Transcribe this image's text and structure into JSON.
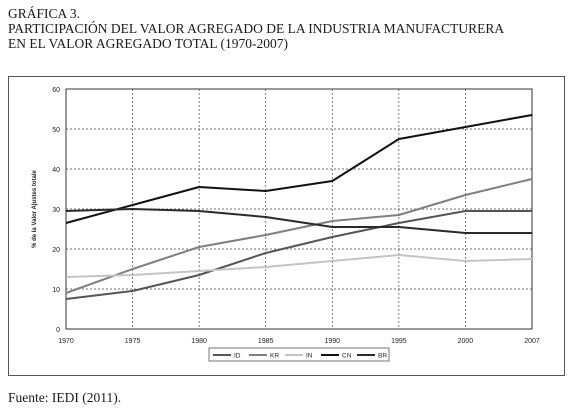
{
  "figure": {
    "label": "GRÁFICA 3.",
    "title_line1": "PARTICIPACIÓN DEL VALOR AGREGADO DE LA INDUSTRIA MANUFACTURERA",
    "title_line2": "EN EL VALOR AGREGADO TOTAL (1970-2007)",
    "source": "Fuente: IEDI (2011)."
  },
  "chart_data": {
    "type": "line",
    "title": "",
    "xlabel": "",
    "ylabel": "% de la Valor Ajustes totale",
    "categories": [
      "1970",
      "1975",
      "1980",
      "1985",
      "1990",
      "1995",
      "2000",
      "2007"
    ],
    "ylim": [
      0,
      60
    ],
    "yticks": [
      "0",
      "10",
      "20",
      "30",
      "40",
      "50",
      "60"
    ],
    "grid": "dashed",
    "legend_position": "bottom",
    "series": [
      {
        "name": "ID",
        "color": "#555555",
        "values": [
          7.5,
          9.5,
          13.5,
          19,
          23,
          26.5,
          29.5,
          29.5
        ]
      },
      {
        "name": "KR",
        "color": "#7f7f7f",
        "values": [
          9,
          15,
          20.5,
          23.5,
          27,
          28.5,
          33.5,
          37.5
        ]
      },
      {
        "name": "IN",
        "color": "#c4c4c4",
        "values": [
          13,
          13.5,
          14.5,
          15.5,
          17,
          18.5,
          17,
          17.5
        ]
      },
      {
        "name": "CN",
        "color": "#111111",
        "values": [
          26.5,
          31,
          35.5,
          34.5,
          37,
          47.5,
          50.5,
          53.5
        ]
      },
      {
        "name": "BR",
        "color": "#2a2a2a",
        "values": [
          29.5,
          30,
          29.5,
          28,
          25.5,
          25.5,
          24,
          24
        ]
      }
    ]
  }
}
